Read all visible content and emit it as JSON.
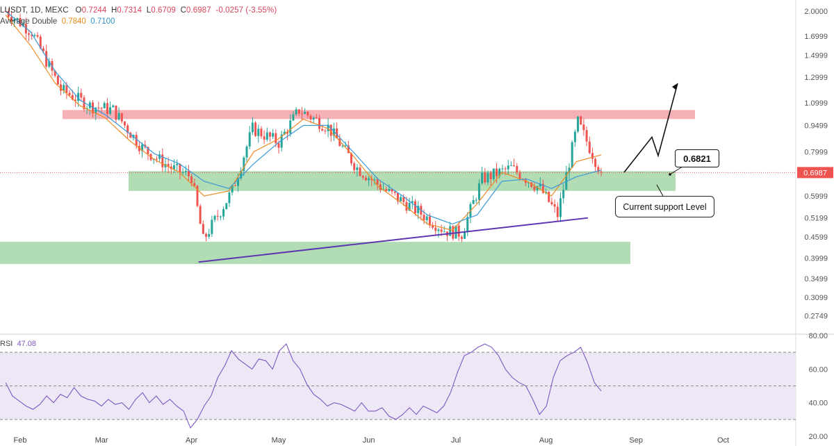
{
  "header": {
    "symbol_line": "LUSDT, 1D, MEXC",
    "ohlc": {
      "o_label": "O",
      "o": "0.7244",
      "h_label": "H",
      "h": "0.7314",
      "l_label": "L",
      "l": "0.6709",
      "c_label": "C",
      "c": "0.6987",
      "change": "-0.0257 (-3.55%)"
    },
    "ma_label": "Average Double",
    "ma_values": [
      "0.7840",
      "0.7100"
    ]
  },
  "rsi_header": {
    "label": "RSI",
    "value": "47.08"
  },
  "annotations": {
    "price_box": "0.6821",
    "support_callout": "Current support Level",
    "last_price_tag": "0.6987"
  },
  "colors": {
    "up": "#26a69a",
    "down": "#ef5350",
    "resistance_zone": "#f5a3aa",
    "support_zone": "#a5d6a7",
    "trendline": "#5e35b1",
    "ma_fast": "#ef8a24",
    "ma_slow": "#3a9ad9",
    "rsi_line": "#7e57c2",
    "rsi_band": "#ede7f6"
  },
  "chart_data": [
    {
      "type": "line",
      "subtype": "candlestick",
      "x_tick_labels": [
        "Feb",
        "Mar",
        "Apr",
        "May",
        "Jun",
        "Jul",
        "Aug",
        "Sep",
        "Oct"
      ],
      "y_tick_labels": [
        "2.0000",
        "1.6999",
        "1.4999",
        "1.2999",
        "1.0999",
        "0.9499",
        "0.7999",
        "0.6987",
        "0.5999",
        "0.5199",
        "0.4599",
        "0.3999",
        "0.3499",
        "0.3099",
        "0.2749"
      ],
      "log_scale": true,
      "last_price": 0.6987,
      "series": [
        {
          "name": "Close",
          "x": [
            "Jan 27",
            "Feb 05",
            "Feb 15",
            "Feb 25",
            "Mar 05",
            "Mar 15",
            "Mar 25",
            "Apr 01",
            "Apr 05",
            "Apr 15",
            "Apr 22",
            "May 01",
            "May 08",
            "May 18",
            "May 28",
            "Jun 07",
            "Jun 17",
            "Jun 27",
            "Jul 03",
            "Jul 10",
            "Jul 20",
            "Jul 30",
            "Aug 05",
            "Aug 12",
            "Aug 20"
          ],
          "values": [
            2.0,
            1.75,
            1.2,
            1.08,
            1.05,
            0.82,
            0.72,
            0.68,
            0.45,
            0.62,
            0.93,
            0.85,
            1.05,
            0.94,
            0.72,
            0.62,
            0.55,
            0.48,
            0.47,
            0.67,
            0.72,
            0.63,
            0.53,
            0.97,
            0.6987
          ]
        },
        {
          "name": "0.7840",
          "values": [
            1.95,
            1.6,
            1.25,
            1.08,
            1.0,
            0.86,
            0.76,
            0.7,
            0.6,
            0.62,
            0.8,
            0.87,
            0.99,
            0.93,
            0.78,
            0.64,
            0.57,
            0.5,
            0.48,
            0.57,
            0.7,
            0.66,
            0.6,
            0.75,
            0.784
          ]
        },
        {
          "name": "0.7100",
          "values": [
            2.0,
            1.75,
            1.35,
            1.12,
            1.02,
            0.9,
            0.79,
            0.74,
            0.66,
            0.63,
            0.74,
            0.85,
            0.95,
            0.95,
            0.8,
            0.67,
            0.6,
            0.53,
            0.5,
            0.53,
            0.66,
            0.67,
            0.63,
            0.68,
            0.71
          ]
        }
      ],
      "zones": [
        {
          "name": "resistance",
          "y_low": 0.99,
          "y_high": 1.05
        },
        {
          "name": "support current",
          "y_low": 0.62,
          "y_high": 0.705
        },
        {
          "name": "support base",
          "y_low": 0.385,
          "y_high": 0.445
        }
      ],
      "trendlines": [
        {
          "from": [
            "Apr 01",
            0.39
          ],
          "to": [
            "Aug 20",
            0.52
          ]
        }
      ],
      "projection": {
        "points": [
          [
            "Aug 20",
            0.7
          ],
          [
            "Aug 26",
            0.88
          ],
          [
            "Aug 28",
            0.78
          ],
          [
            "Sep 02",
            1.25
          ]
        ]
      }
    },
    {
      "type": "line",
      "title": "RSI",
      "y_tick_labels": [
        "80.00",
        "60.00",
        "40.00",
        "20.00"
      ],
      "ylim": [
        20,
        80
      ],
      "bands": [
        30,
        50,
        70
      ],
      "series": [
        {
          "name": "RSI",
          "values": [
            52,
            44,
            41,
            38,
            36,
            39,
            44,
            40,
            45,
            43,
            49,
            44,
            42,
            41,
            38,
            42,
            39,
            40,
            36,
            42,
            46,
            40,
            44,
            39,
            42,
            38,
            35,
            25,
            30,
            38,
            44,
            55,
            62,
            71,
            66,
            63,
            60,
            66,
            65,
            60,
            71,
            75,
            65,
            60,
            51,
            45,
            42,
            38,
            40,
            39,
            37,
            35,
            40,
            35,
            35,
            37,
            32,
            30,
            33,
            37,
            33,
            38,
            36,
            34,
            38,
            46,
            58,
            68,
            70,
            73,
            75,
            73,
            68,
            60,
            55,
            52,
            50,
            42,
            33,
            38,
            55,
            65,
            68,
            70,
            73,
            64,
            52,
            47
          ]
        }
      ]
    }
  ]
}
